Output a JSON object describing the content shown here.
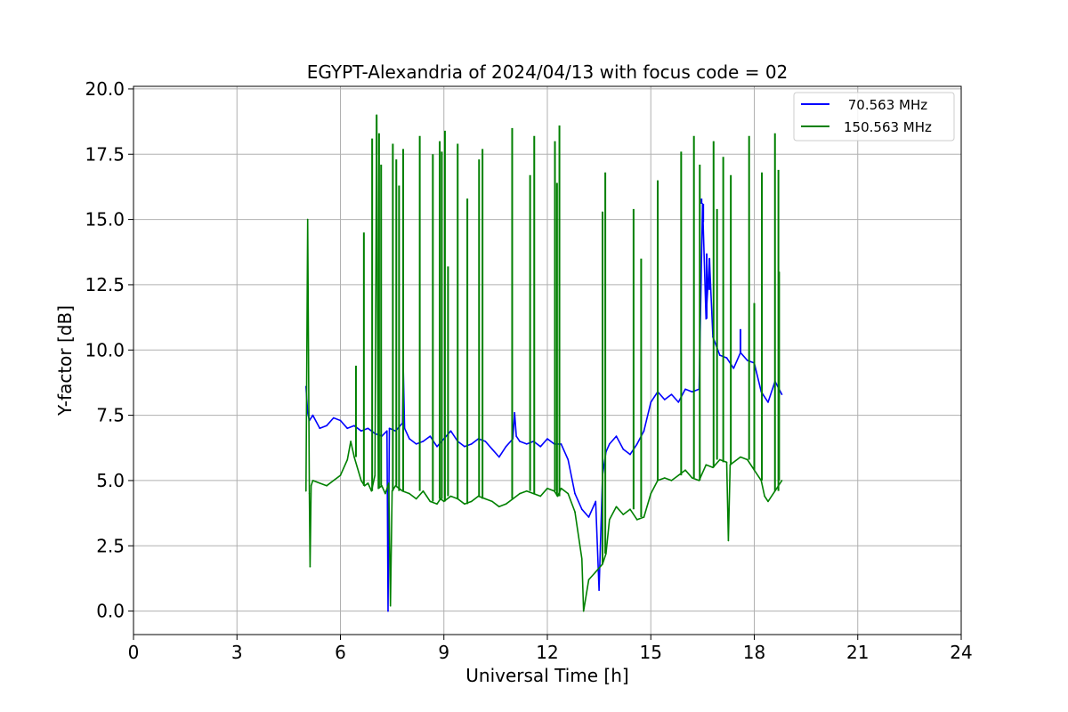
{
  "chart_data": {
    "type": "line",
    "title": "EGYPT-Alexandria of 2024/04/13 with focus code = 02",
    "xlabel": "Universal Time [h]",
    "ylabel": "Y-factor [dB]",
    "xlim": [
      0,
      24
    ],
    "ylim": [
      -0.9,
      20.1
    ],
    "xticks": [
      0,
      3,
      6,
      9,
      12,
      15,
      18,
      21,
      24
    ],
    "xtick_labels": [
      "0",
      "3",
      "6",
      "9",
      "12",
      "15",
      "18",
      "21",
      "24"
    ],
    "yticks": [
      0,
      2.5,
      5,
      7.5,
      10,
      12.5,
      15,
      17.5,
      20
    ],
    "ytick_labels": [
      "0.0",
      "2.5",
      "5.0",
      "7.5",
      "10.0",
      "12.5",
      "15.0",
      "17.5",
      "20.0"
    ],
    "grid": true,
    "legend_position": "top-right",
    "series": [
      {
        "name": " 70.563 MHz",
        "color": "#0000ff",
        "x": [
          5.0,
          5.05,
          5.1,
          5.2,
          5.4,
          5.6,
          5.8,
          6.0,
          6.2,
          6.4,
          6.6,
          6.8,
          7.0,
          7.2,
          7.35,
          7.38,
          7.42,
          7.6,
          7.8,
          7.82,
          7.86,
          8.0,
          8.2,
          8.4,
          8.6,
          8.8,
          9.0,
          9.2,
          9.4,
          9.6,
          9.8,
          10.0,
          10.2,
          10.4,
          10.6,
          10.8,
          11.0,
          11.05,
          11.1,
          11.2,
          11.4,
          11.6,
          11.8,
          12.0,
          12.2,
          12.4,
          12.6,
          12.8,
          13.0,
          13.2,
          13.4,
          13.5,
          13.6,
          13.7,
          13.8,
          14.0,
          14.2,
          14.4,
          14.6,
          14.8,
          15.0,
          15.2,
          15.4,
          15.6,
          15.8,
          16.0,
          16.2,
          16.4,
          16.5,
          16.6,
          16.7,
          16.8,
          17.0,
          17.2,
          17.4,
          17.6,
          17.8,
          18.0,
          18.2,
          18.4,
          18.6,
          18.8
        ],
        "values": [
          8.6,
          7.6,
          7.3,
          7.5,
          7.0,
          7.1,
          7.4,
          7.3,
          7.0,
          7.1,
          6.9,
          7.0,
          6.8,
          6.7,
          6.9,
          0.0,
          7.0,
          6.9,
          7.2,
          9.5,
          7.0,
          6.6,
          6.4,
          6.5,
          6.7,
          6.3,
          6.6,
          6.9,
          6.5,
          6.3,
          6.4,
          6.6,
          6.5,
          6.2,
          5.9,
          6.3,
          6.6,
          7.6,
          6.7,
          6.5,
          6.4,
          6.5,
          6.3,
          6.6,
          6.4,
          6.4,
          5.8,
          4.5,
          3.9,
          3.6,
          4.2,
          0.8,
          5.2,
          6.1,
          6.4,
          6.7,
          6.2,
          6.0,
          6.4,
          6.9,
          8.0,
          8.4,
          8.1,
          8.3,
          8.0,
          8.5,
          8.4,
          8.5,
          15.6,
          11.2,
          13.5,
          10.5,
          9.8,
          9.7,
          9.3,
          9.9,
          9.6,
          9.5,
          8.4,
          8.0,
          8.8,
          8.3
        ]
      },
      {
        "name": "150.563 MHz",
        "color": "#008000",
        "x": [
          5.0,
          5.05,
          5.1,
          5.12,
          5.15,
          5.2,
          5.4,
          5.6,
          5.8,
          6.0,
          6.2,
          6.3,
          6.4,
          6.6,
          6.7,
          6.8,
          6.9,
          7.0,
          7.05,
          7.1,
          7.2,
          7.3,
          7.4,
          7.45,
          7.5,
          7.6,
          7.8,
          8.0,
          8.2,
          8.4,
          8.5,
          8.6,
          8.8,
          8.9,
          9.0,
          9.2,
          9.4,
          9.6,
          9.8,
          10.0,
          10.2,
          10.4,
          10.6,
          10.8,
          11.0,
          11.2,
          11.4,
          11.6,
          11.8,
          12.0,
          12.2,
          12.3,
          12.4,
          12.6,
          12.8,
          13.0,
          13.05,
          13.2,
          13.4,
          13.6,
          13.7,
          13.8,
          14.0,
          14.2,
          14.4,
          14.6,
          14.8,
          15.0,
          15.2,
          15.4,
          15.6,
          15.8,
          16.0,
          16.2,
          16.4,
          16.6,
          16.8,
          17.0,
          17.2,
          17.25,
          17.3,
          17.6,
          17.8,
          18.0,
          18.2,
          18.3,
          18.4,
          18.6,
          18.8
        ],
        "values": [
          4.6,
          15.0,
          4.5,
          1.7,
          4.8,
          5.0,
          4.9,
          4.8,
          5.0,
          5.2,
          5.8,
          6.5,
          5.9,
          5.0,
          4.8,
          4.9,
          4.6,
          5.2,
          19.0,
          4.7,
          4.8,
          4.5,
          4.9,
          0.2,
          4.6,
          4.8,
          4.6,
          4.5,
          4.3,
          4.6,
          4.4,
          4.2,
          4.1,
          4.3,
          4.2,
          4.4,
          4.3,
          4.1,
          4.2,
          4.4,
          4.3,
          4.2,
          4.0,
          4.1,
          4.3,
          4.5,
          4.6,
          4.5,
          4.4,
          4.7,
          4.6,
          4.4,
          4.7,
          4.5,
          3.8,
          2.0,
          0.0,
          1.2,
          1.5,
          1.8,
          2.2,
          3.5,
          4.0,
          3.7,
          3.9,
          3.5,
          3.6,
          4.5,
          5.0,
          5.1,
          5.0,
          5.2,
          5.4,
          5.1,
          5.0,
          5.6,
          5.5,
          5.8,
          5.7,
          2.7,
          5.6,
          5.9,
          5.8,
          5.4,
          5.0,
          4.4,
          4.2,
          4.6,
          5.0
        ]
      }
    ],
    "spikes": [
      {
        "series": 0,
        "x": [
          16.47,
          16.52,
          16.62,
          16.7,
          17.6
        ],
        "values": [
          15.8,
          14.9,
          13.7,
          12.3,
          10.8
        ]
      },
      {
        "series": 1,
        "x": [
          6.45,
          6.68,
          6.92,
          7.05,
          7.12,
          7.18,
          7.52,
          7.62,
          7.7,
          7.82,
          8.3,
          8.68,
          8.88,
          8.94,
          9.03,
          9.12,
          9.4,
          9.68,
          10.02,
          10.12,
          10.98,
          11.5,
          11.62,
          12.22,
          12.28,
          12.35,
          13.6,
          13.68,
          14.5,
          14.72,
          15.2,
          15.88,
          16.25,
          16.42,
          16.82,
          16.92,
          17.1,
          17.32,
          17.85,
          18.0,
          18.22,
          18.6,
          18.7,
          18.72
        ],
        "values": [
          9.4,
          14.5,
          18.1,
          17.5,
          18.3,
          17.1,
          17.9,
          17.3,
          16.3,
          17.7,
          18.2,
          17.5,
          18.0,
          17.6,
          18.4,
          13.2,
          17.9,
          15.8,
          17.3,
          17.7,
          18.5,
          16.7,
          18.2,
          18.0,
          16.4,
          18.6,
          15.3,
          16.8,
          15.4,
          13.5,
          16.5,
          17.6,
          18.2,
          17.1,
          18.0,
          15.4,
          17.4,
          16.7,
          18.2,
          11.8,
          16.8,
          18.3,
          16.9,
          13.0
        ]
      }
    ],
    "legend": [
      {
        "label": " 70.563 MHz",
        "color": "#0000ff"
      },
      {
        "label": "150.563 MHz",
        "color": "#008000"
      }
    ]
  }
}
